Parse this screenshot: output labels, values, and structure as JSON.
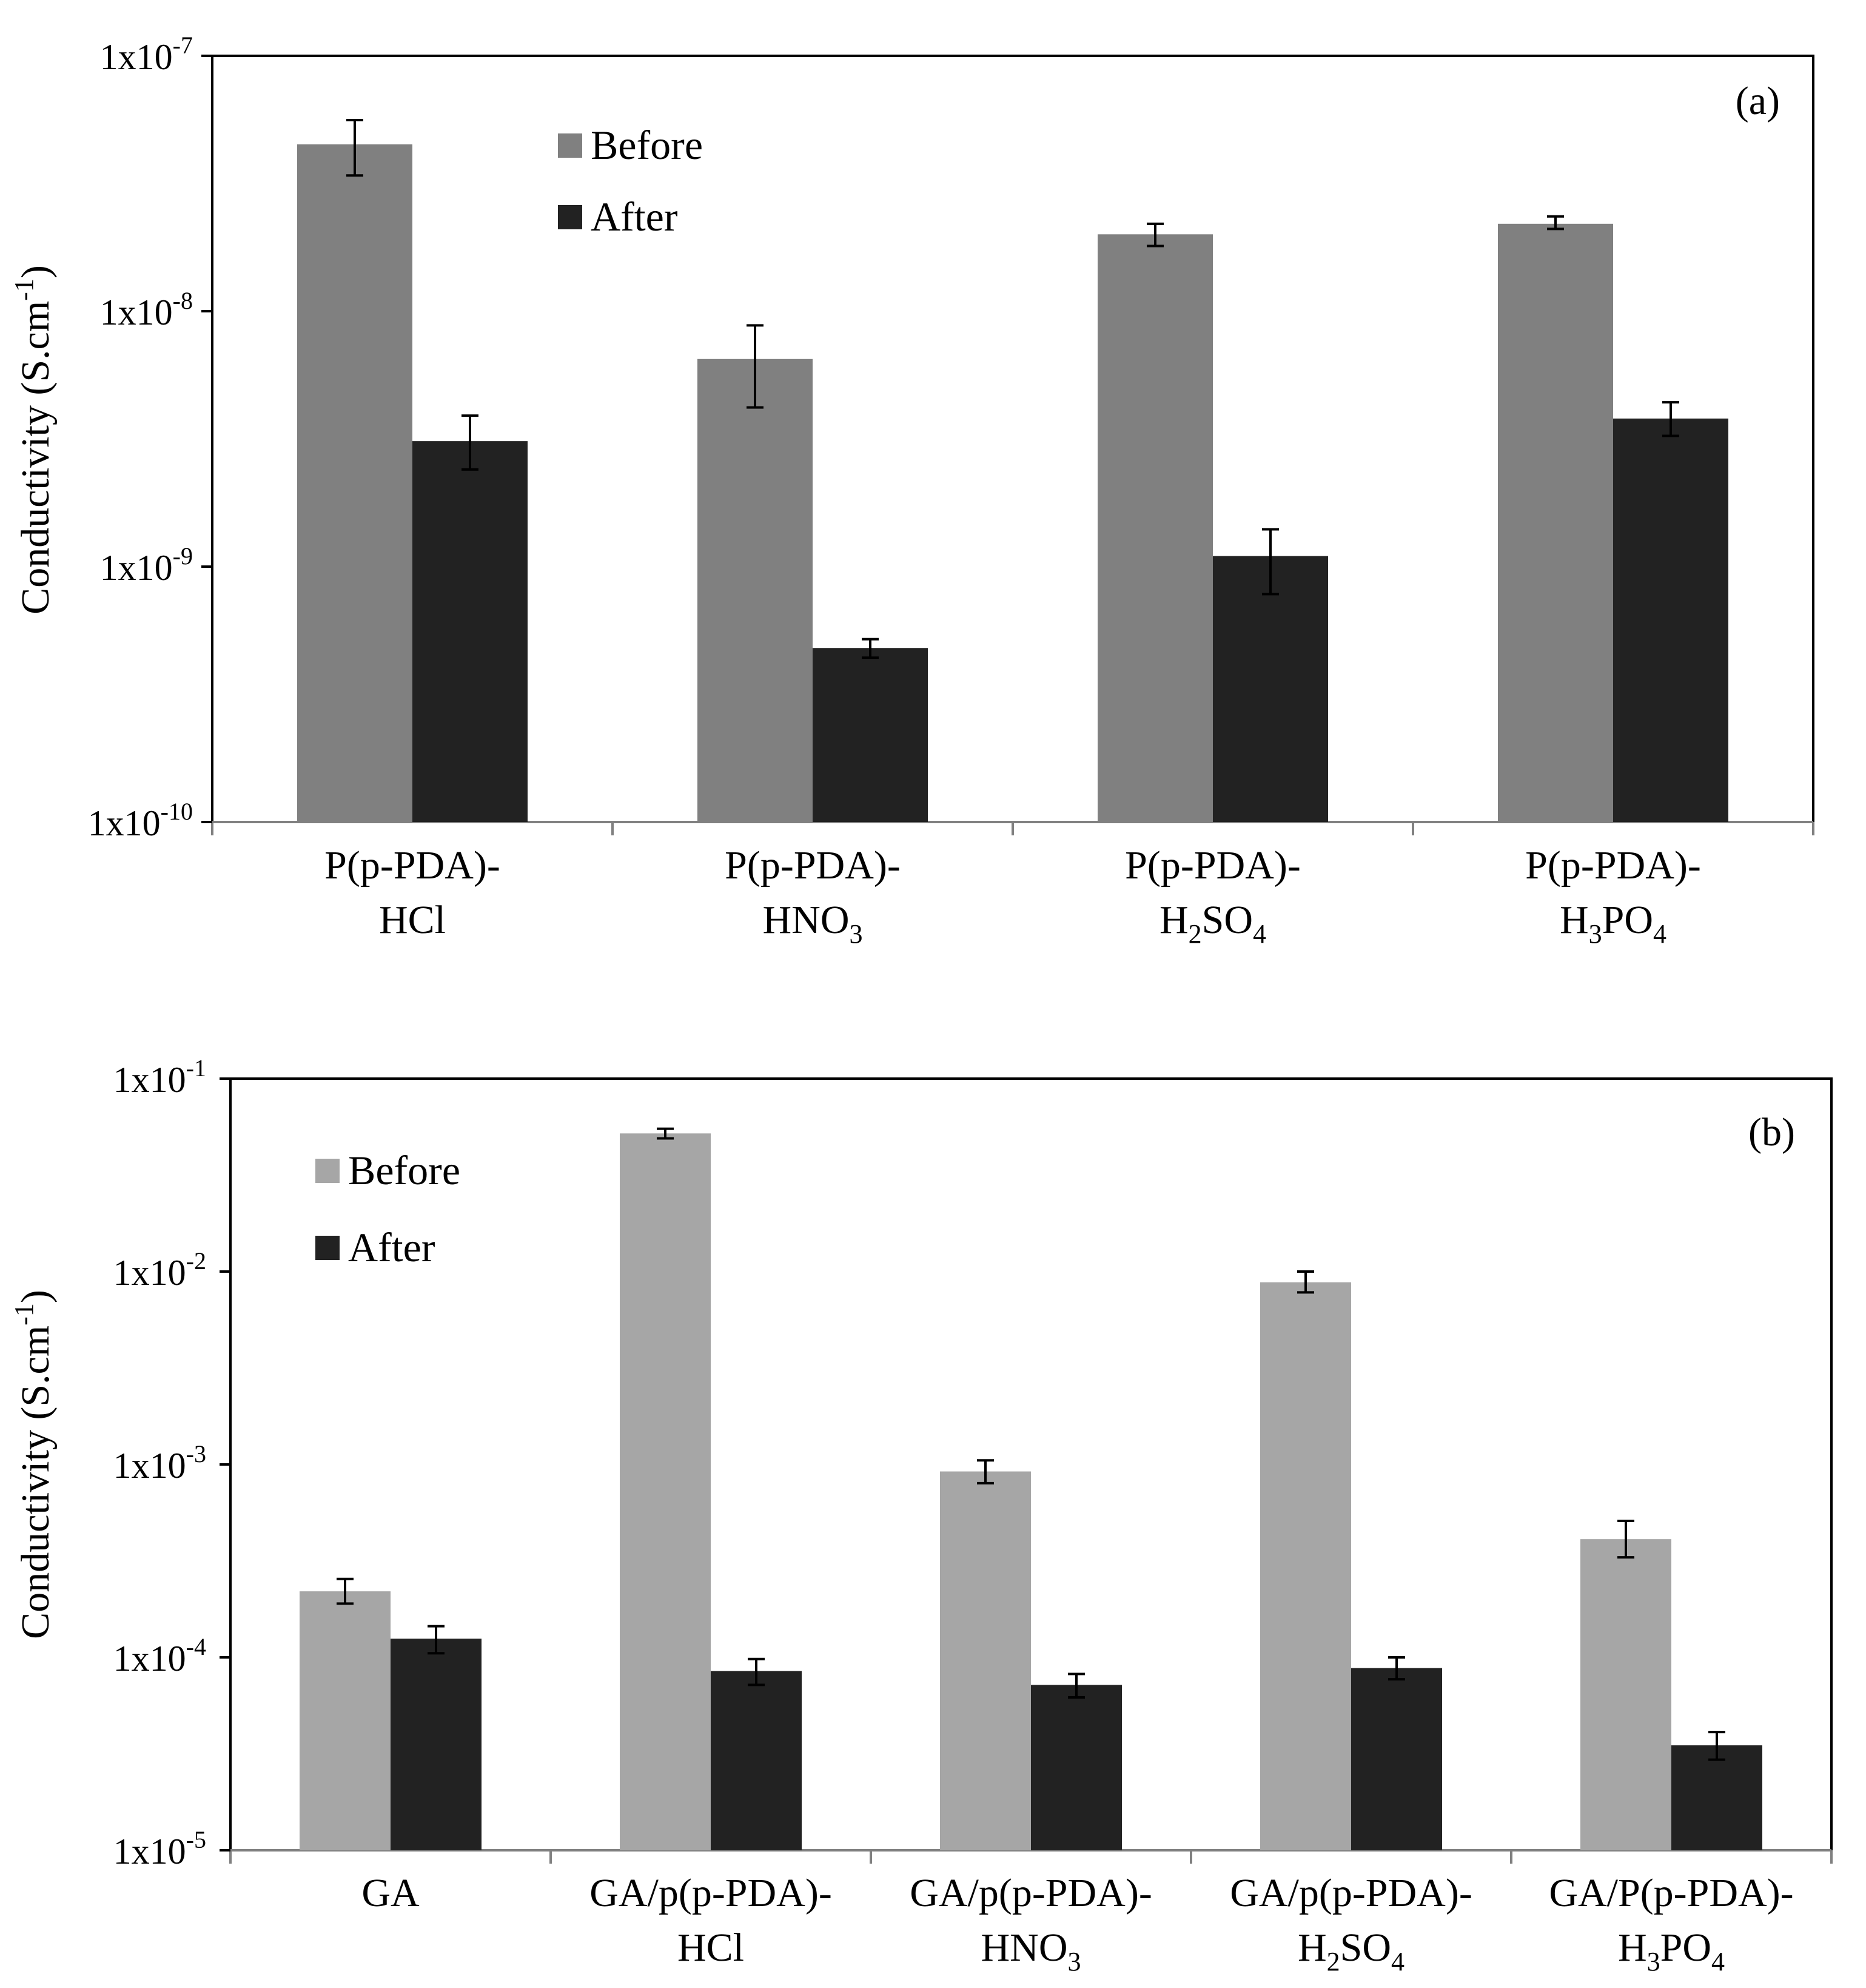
{
  "chart_data": [
    {
      "type": "bar",
      "panel_label": "(a)",
      "ylabel": "Conductivity (S.cm-1)",
      "yscale": "log",
      "ylim": [
        1e-10,
        1e-07
      ],
      "y_ticks": [
        {
          "value": 1e-07,
          "mantissa": "1x10",
          "exp": "-7"
        },
        {
          "value": 1e-08,
          "mantissa": "1x10",
          "exp": "-8"
        },
        {
          "value": 1e-09,
          "mantissa": "1x10",
          "exp": "-9"
        },
        {
          "value": 1e-10,
          "mantissa": "1x10",
          "exp": "-10"
        }
      ],
      "categories": [
        {
          "lines": [
            [
              {
                "t": "P(p-PDA)-"
              }
            ],
            [
              {
                "t": "HCl"
              }
            ]
          ]
        },
        {
          "lines": [
            [
              {
                "t": "P(p-PDA)-"
              }
            ],
            [
              {
                "t": "HNO"
              },
              {
                "t": "3",
                "sub": true
              }
            ]
          ]
        },
        {
          "lines": [
            [
              {
                "t": "P(p-PDA)-"
              }
            ],
            [
              {
                "t": "H"
              },
              {
                "t": "2",
                "sub": true
              },
              {
                "t": "SO"
              },
              {
                "t": "4",
                "sub": true
              }
            ]
          ]
        },
        {
          "lines": [
            [
              {
                "t": "P(p-PDA)-"
              }
            ],
            [
              {
                "t": "H"
              },
              {
                "t": "3",
                "sub": true
              },
              {
                "t": "PO"
              },
              {
                "t": "4",
                "sub": true
              }
            ]
          ]
        }
      ],
      "series": [
        {
          "name": "Before",
          "color": "#808080",
          "values": [
            4.5e-08,
            6.5e-09,
            2e-08,
            2.2e-08
          ],
          "err_low": [
            3.4e-08,
            4.2e-09,
            1.8e-08,
            2.1e-08
          ],
          "err_high": [
            5.6e-08,
            8.8e-09,
            2.2e-08,
            2.35e-08
          ]
        },
        {
          "name": "After",
          "color": "#222222",
          "values": [
            3.1e-09,
            4.8e-10,
            1.1e-09,
            3.8e-09
          ],
          "err_low": [
            2.4e-09,
            4.4e-10,
            7.8e-10,
            3.25e-09
          ],
          "err_high": [
            3.9e-09,
            5.2e-10,
            1.4e-09,
            4.4e-09
          ]
        }
      ],
      "legend_position": "top-left"
    },
    {
      "type": "bar",
      "panel_label": "(b)",
      "ylabel": "Conductivity (S.cm-1)",
      "yscale": "log",
      "ylim": [
        1e-05,
        0.1
      ],
      "y_ticks": [
        {
          "value": 0.1,
          "mantissa": "1x10",
          "exp": "-1"
        },
        {
          "value": 0.01,
          "mantissa": "1x10",
          "exp": "-2"
        },
        {
          "value": 0.001,
          "mantissa": "1x10",
          "exp": "-3"
        },
        {
          "value": 0.0001,
          "mantissa": "1x10",
          "exp": "-4"
        },
        {
          "value": 1e-05,
          "mantissa": "1x10",
          "exp": "-5"
        }
      ],
      "categories": [
        {
          "lines": [
            [
              {
                "t": "GA"
              }
            ]
          ]
        },
        {
          "lines": [
            [
              {
                "t": "GA/p(p-PDA)-"
              }
            ],
            [
              {
                "t": "HCl"
              }
            ]
          ]
        },
        {
          "lines": [
            [
              {
                "t": "GA/p(p-PDA)-"
              }
            ],
            [
              {
                "t": "HNO"
              },
              {
                "t": "3",
                "sub": true
              }
            ]
          ]
        },
        {
          "lines": [
            [
              {
                "t": "GA/p(p-PDA)-"
              }
            ],
            [
              {
                "t": "H"
              },
              {
                "t": "2",
                "sub": true
              },
              {
                "t": "SO"
              },
              {
                "t": "4",
                "sub": true
              }
            ]
          ]
        },
        {
          "lines": [
            [
              {
                "t": "GA/P(p-PDA)-"
              }
            ],
            [
              {
                "t": "H"
              },
              {
                "t": "3",
                "sub": true
              },
              {
                "t": "PO"
              },
              {
                "t": "4",
                "sub": true
              }
            ]
          ]
        }
      ],
      "series": [
        {
          "name": "Before",
          "color": "#a6a6a6",
          "values": [
            0.00022,
            0.052,
            0.00092,
            0.0088,
            0.00041
          ],
          "err_low": [
            0.00019,
            0.049,
            0.0008,
            0.0078,
            0.00033
          ],
          "err_high": [
            0.000255,
            0.055,
            0.00105,
            0.01,
            0.00051
          ]
        },
        {
          "name": "After",
          "color": "#222222",
          "values": [
            0.000125,
            8.5e-05,
            7.2e-05,
            8.8e-05,
            3.5e-05
          ],
          "err_low": [
            0.000105,
            7.2e-05,
            6.2e-05,
            7.7e-05,
            2.95e-05
          ],
          "err_high": [
            0.000145,
            9.8e-05,
            8.2e-05,
            0.0001,
            4.1e-05
          ]
        }
      ],
      "legend_position": "top-left"
    }
  ]
}
